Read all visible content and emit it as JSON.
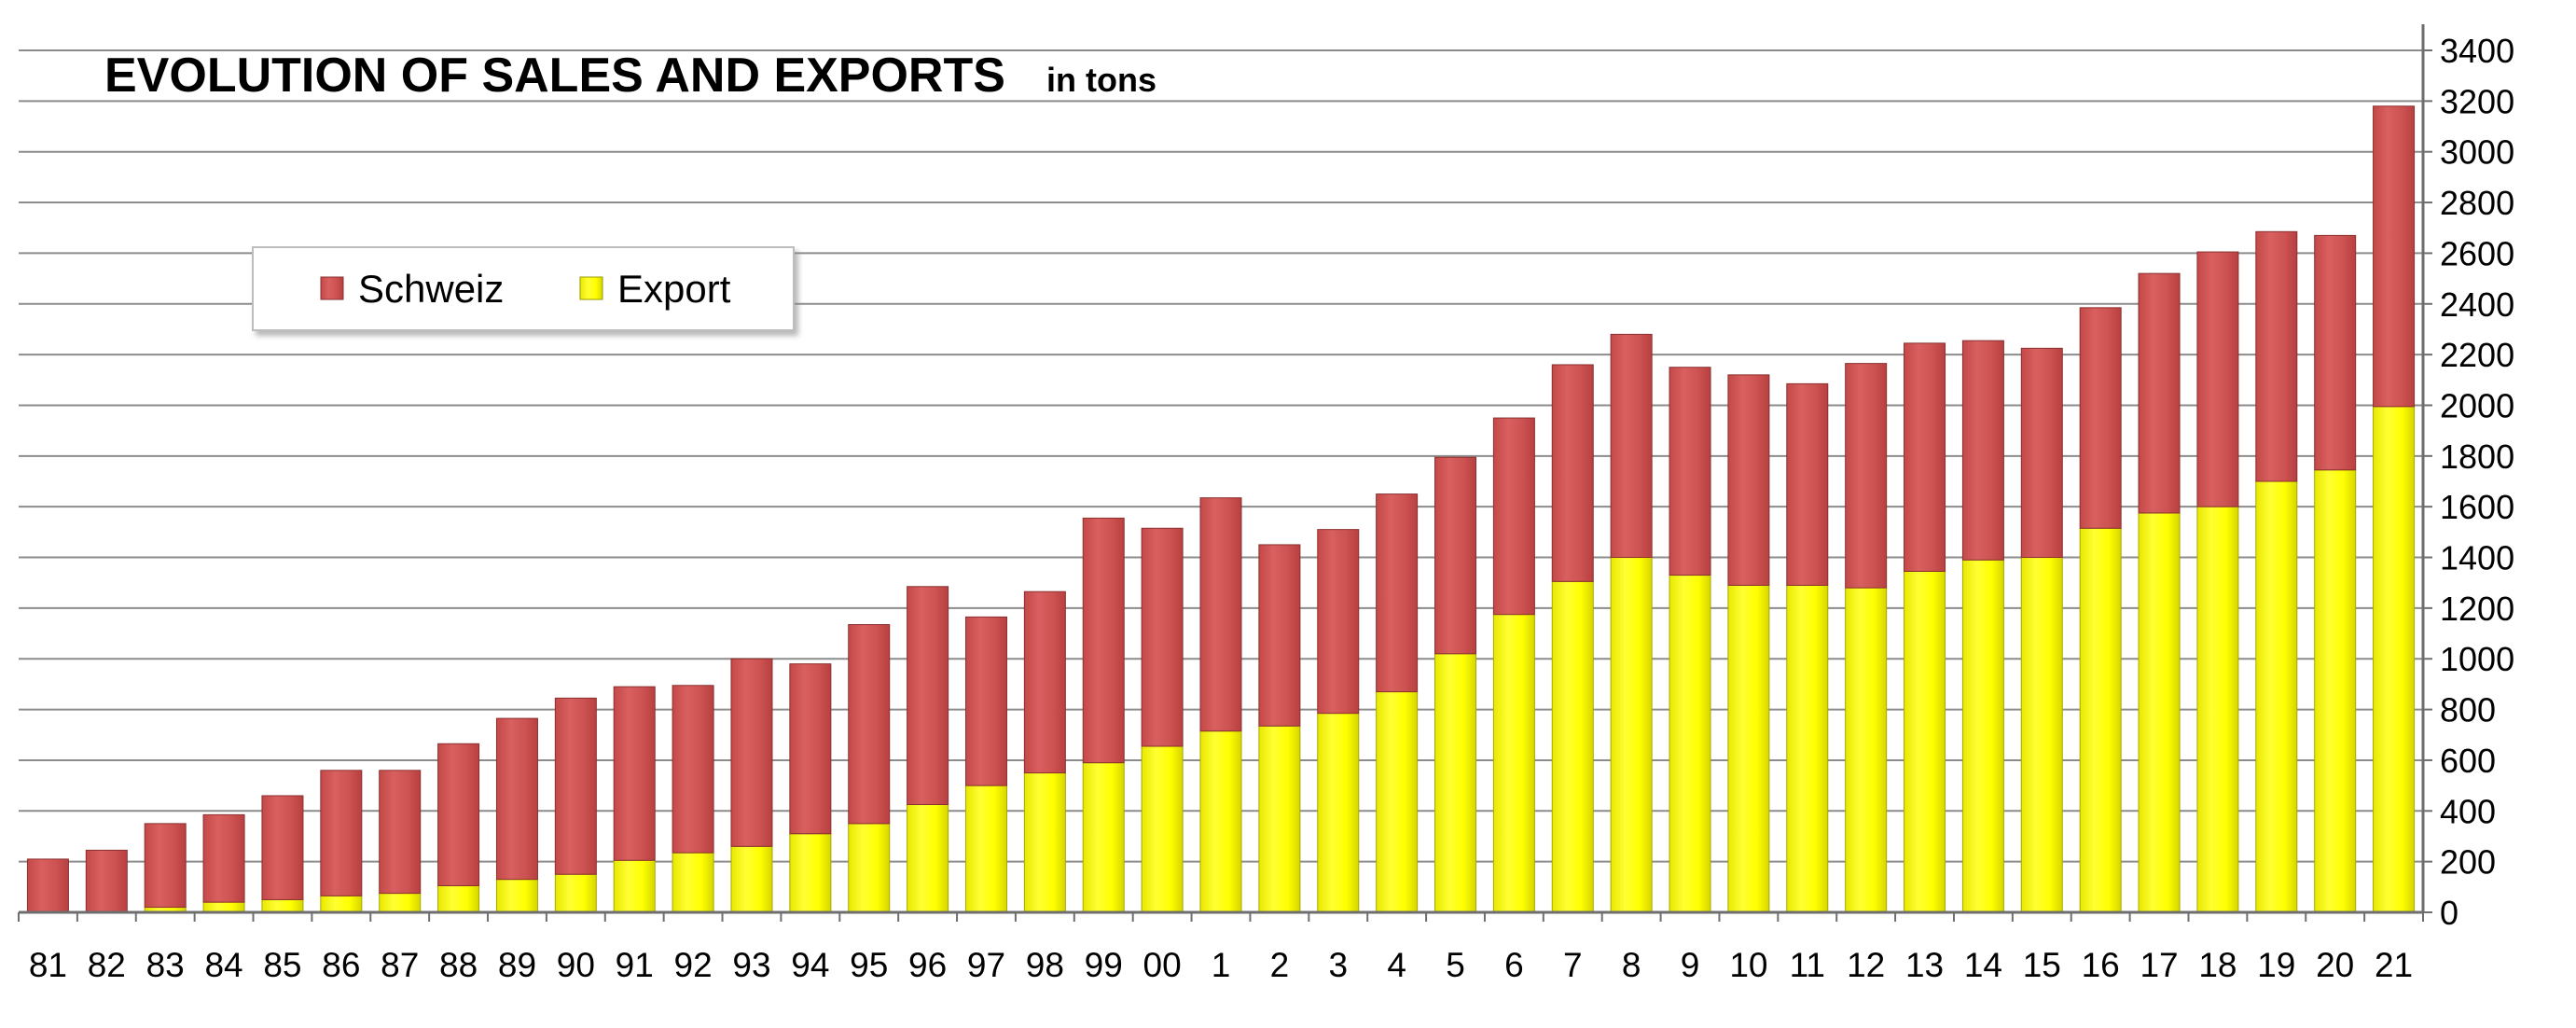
{
  "chart_data": {
    "type": "bar",
    "stacked": true,
    "title": "EVOLUTION OF SALES AND EXPORTS",
    "subtitle": "in tons",
    "xlabel": "",
    "ylabel": "",
    "ylim": [
      0,
      3400
    ],
    "yticks": [
      0,
      200,
      400,
      600,
      800,
      1000,
      1200,
      1400,
      1600,
      1800,
      2000,
      2200,
      2400,
      2600,
      2800,
      3000,
      3200,
      3400
    ],
    "grid": true,
    "y_axis_side": "right",
    "legend_position": "top-left",
    "categories": [
      "81",
      "82",
      "83",
      "84",
      "85",
      "86",
      "87",
      "88",
      "89",
      "90",
      "91",
      "92",
      "93",
      "94",
      "95",
      "96",
      "97",
      "98",
      "99",
      "00",
      "1",
      "2",
      "3",
      "4",
      "5",
      "6",
      "7",
      "8",
      "9",
      "10",
      "11",
      "12",
      "13",
      "14",
      "15",
      "16",
      "17",
      "18",
      "19",
      "20",
      "21"
    ],
    "series": [
      {
        "name": "Export",
        "color": "#ffff00",
        "values": [
          0,
          0,
          20,
          40,
          50,
          65,
          75,
          105,
          130,
          150,
          205,
          235,
          260,
          310,
          350,
          425,
          500,
          550,
          590,
          655,
          715,
          735,
          785,
          870,
          1020,
          1175,
          1305,
          1400,
          1330,
          1290,
          1290,
          1280,
          1345,
          1390,
          1400,
          1515,
          1575,
          1600,
          1700,
          1745,
          1995
        ]
      },
      {
        "name": "Schweiz",
        "color": "#cd5050",
        "values": [
          210,
          245,
          330,
          345,
          410,
          495,
          485,
          560,
          635,
          695,
          685,
          660,
          740,
          670,
          785,
          860,
          665,
          715,
          965,
          860,
          920,
          715,
          725,
          780,
          775,
          775,
          855,
          880,
          820,
          830,
          795,
          885,
          900,
          865,
          825,
          870,
          945,
          1005,
          985,
          925,
          1185
        ]
      }
    ]
  }
}
